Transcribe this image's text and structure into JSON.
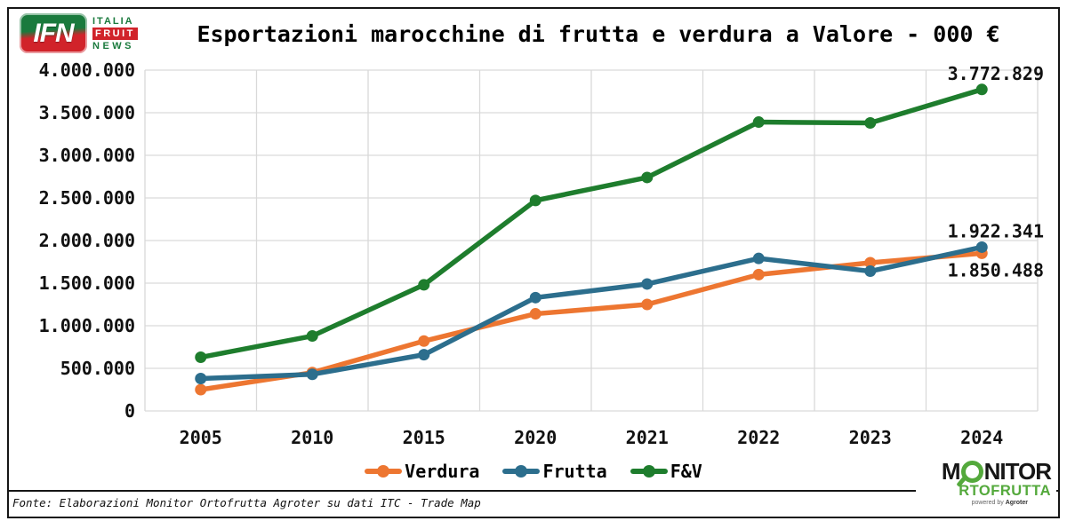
{
  "brand_ifn": {
    "abbr": "IFN",
    "lines": [
      "ITALIA",
      "FRUIT",
      "NEWS"
    ],
    "green": "#1a7a3d",
    "red": "#d1232a"
  },
  "chart_data": {
    "type": "line",
    "title": "Esportazioni marocchine di frutta e verdura a Valore - 000 €",
    "categories": [
      "2005",
      "2010",
      "2015",
      "2020",
      "2021",
      "2022",
      "2023",
      "2024"
    ],
    "series": [
      {
        "name": "Verdura",
        "color": "#ED7631",
        "values": [
          250000,
          450000,
          820000,
          1140000,
          1250000,
          1600000,
          1740000,
          1850488
        ],
        "end_label": {
          "text": "1.850.488",
          "position": "below"
        }
      },
      {
        "name": "Frutta",
        "color": "#2C6E8D",
        "values": [
          380000,
          430000,
          660000,
          1330000,
          1490000,
          1790000,
          1640000,
          1922341
        ],
        "end_label": {
          "text": "1.922.341",
          "position": "above"
        }
      },
      {
        "name": "F&V",
        "color": "#1E7D2D",
        "values": [
          630000,
          880000,
          1480000,
          2470000,
          2740000,
          3390000,
          3380000,
          3772829
        ],
        "end_label": {
          "text": "3.772.829",
          "position": "above"
        }
      }
    ],
    "ylim": [
      0,
      4000000
    ],
    "y_tick_step": 500000,
    "y_tick_labels": [
      "0",
      "500.000",
      "1.000.000",
      "1.500.000",
      "2.000.000",
      "2.500.000",
      "3.000.000",
      "3.500.000",
      "4.000.000"
    ],
    "grid": true,
    "legend_position": "bottom",
    "gridline_color": "#d9d9d9"
  },
  "footer": {
    "source": "Fonte: Elaborazioni Monitor Ortofrutta Agroter su dati ITC - Trade Map",
    "logo_monitor": {
      "part1": "M",
      "part2": "NITOR",
      "line2": "RTOFRUTTA",
      "powered": "powered by",
      "brand": "Agroter"
    }
  }
}
